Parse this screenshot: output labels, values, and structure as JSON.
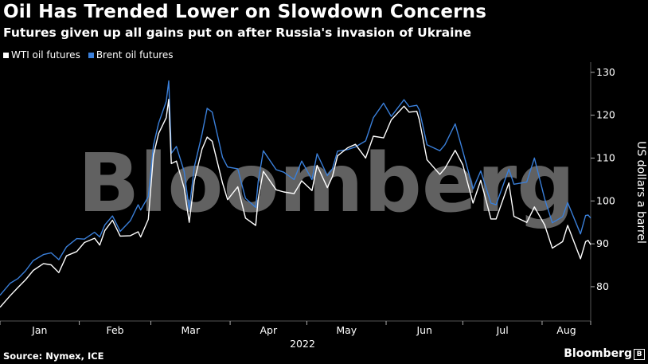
{
  "title": "Oil Has Trended Lower on Slowdown Concerns",
  "subtitle": "Futures given up all gains put on after Russia's invasion of Ukraine",
  "source": "Source: Nymex, ICE",
  "brand": "Bloomberg",
  "watermark": "Bloomberg",
  "colors": {
    "wti": "#ffffff",
    "brent": "#3a7fd9",
    "grid": "#555555",
    "text": "#ffffff"
  },
  "chart_data": {
    "type": "line",
    "title": "Oil Has Trended Lower on Slowdown Concerns",
    "subtitle": "Futures given up all gains put on after Russia's invasion of Ukraine",
    "xlabel": "2022",
    "ylabel": "US dollars a barrel",
    "ylim": [
      72,
      132
    ],
    "yticks": [
      80,
      90,
      100,
      110,
      120,
      130
    ],
    "grid": false,
    "legend_position": "top-left",
    "x_tick_labels": [
      "Jan",
      "Feb",
      "Mar",
      "Apr",
      "May",
      "Jun",
      "Jul",
      "Aug"
    ],
    "x_range": [
      "2022-01-01",
      "2022-08-20"
    ],
    "series": [
      {
        "name": "WTI oil futures",
        "color": "#ffffff",
        "points": [
          [
            "2022-01-01",
            75.2
          ],
          [
            "2022-01-05",
            77.9
          ],
          [
            "2022-01-08",
            79.8
          ],
          [
            "2022-01-11",
            81.6
          ],
          [
            "2022-01-14",
            83.8
          ],
          [
            "2022-01-18",
            85.4
          ],
          [
            "2022-01-21",
            85.1
          ],
          [
            "2022-01-24",
            83.3
          ],
          [
            "2022-01-27",
            87.2
          ],
          [
            "2022-01-31",
            88.2
          ],
          [
            "2022-02-03",
            90.3
          ],
          [
            "2022-02-07",
            91.3
          ],
          [
            "2022-02-09",
            89.7
          ],
          [
            "2022-02-11",
            93.1
          ],
          [
            "2022-02-14",
            95.5
          ],
          [
            "2022-02-17",
            91.8
          ],
          [
            "2022-02-21",
            91.9
          ],
          [
            "2022-02-24",
            92.8
          ],
          [
            "2022-02-25",
            91.6
          ],
          [
            "2022-02-28",
            95.7
          ],
          [
            "2022-03-02",
            110.6
          ],
          [
            "2022-03-04",
            115.7
          ],
          [
            "2022-03-07",
            119.4
          ],
          [
            "2022-03-08",
            123.7
          ],
          [
            "2022-03-09",
            108.7
          ],
          [
            "2022-03-11",
            109.3
          ],
          [
            "2022-03-14",
            103.0
          ],
          [
            "2022-03-16",
            95.0
          ],
          [
            "2022-03-18",
            104.7
          ],
          [
            "2022-03-21",
            112.1
          ],
          [
            "2022-03-23",
            114.9
          ],
          [
            "2022-03-25",
            113.9
          ],
          [
            "2022-03-29",
            104.2
          ],
          [
            "2022-03-31",
            100.3
          ],
          [
            "2022-04-04",
            103.3
          ],
          [
            "2022-04-07",
            96.0
          ],
          [
            "2022-04-11",
            94.3
          ],
          [
            "2022-04-12",
            100.6
          ],
          [
            "2022-04-14",
            106.9
          ],
          [
            "2022-04-19",
            102.6
          ],
          [
            "2022-04-22",
            102.1
          ],
          [
            "2022-04-26",
            101.7
          ],
          [
            "2022-04-29",
            104.7
          ],
          [
            "2022-05-03",
            102.4
          ],
          [
            "2022-05-05",
            108.3
          ],
          [
            "2022-05-09",
            103.1
          ],
          [
            "2022-05-11",
            105.7
          ],
          [
            "2022-05-13",
            110.5
          ],
          [
            "2022-05-17",
            112.4
          ],
          [
            "2022-05-20",
            113.2
          ],
          [
            "2022-05-24",
            110.0
          ],
          [
            "2022-05-27",
            115.1
          ],
          [
            "2022-05-31",
            114.7
          ],
          [
            "2022-06-03",
            118.9
          ],
          [
            "2022-06-08",
            122.1
          ],
          [
            "2022-06-10",
            120.7
          ],
          [
            "2022-06-13",
            120.9
          ],
          [
            "2022-06-14",
            118.9
          ],
          [
            "2022-06-17",
            109.6
          ],
          [
            "2022-06-22",
            106.2
          ],
          [
            "2022-06-24",
            107.6
          ],
          [
            "2022-06-28",
            111.8
          ],
          [
            "2022-07-01",
            108.4
          ],
          [
            "2022-07-05",
            99.5
          ],
          [
            "2022-07-08",
            104.8
          ],
          [
            "2022-07-12",
            95.8
          ],
          [
            "2022-07-14",
            95.8
          ],
          [
            "2022-07-19",
            104.2
          ],
          [
            "2022-07-21",
            96.4
          ],
          [
            "2022-07-26",
            94.98
          ],
          [
            "2022-07-29",
            98.6
          ],
          [
            "2022-08-02",
            94.4
          ],
          [
            "2022-08-05",
            89.0
          ],
          [
            "2022-08-09",
            90.5
          ],
          [
            "2022-08-11",
            94.3
          ],
          [
            "2022-08-16",
            86.5
          ],
          [
            "2022-08-18",
            90.5
          ],
          [
            "2022-08-19",
            90.8
          ],
          [
            "2022-08-20",
            89.8
          ]
        ]
      },
      {
        "name": "Brent oil futures",
        "color": "#3a7fd9",
        "points": [
          [
            "2022-01-01",
            78.0
          ],
          [
            "2022-01-05",
            80.8
          ],
          [
            "2022-01-08",
            81.9
          ],
          [
            "2022-01-11",
            83.7
          ],
          [
            "2022-01-14",
            86.1
          ],
          [
            "2022-01-18",
            87.5
          ],
          [
            "2022-01-21",
            87.9
          ],
          [
            "2022-01-24",
            86.3
          ],
          [
            "2022-01-27",
            89.3
          ],
          [
            "2022-01-31",
            91.2
          ],
          [
            "2022-02-03",
            91.1
          ],
          [
            "2022-02-07",
            92.7
          ],
          [
            "2022-02-09",
            91.6
          ],
          [
            "2022-02-11",
            94.4
          ],
          [
            "2022-02-14",
            96.5
          ],
          [
            "2022-02-17",
            92.9
          ],
          [
            "2022-02-21",
            95.4
          ],
          [
            "2022-02-24",
            99.1
          ],
          [
            "2022-02-25",
            97.9
          ],
          [
            "2022-02-28",
            100.99
          ],
          [
            "2022-03-02",
            112.9
          ],
          [
            "2022-03-04",
            118.1
          ],
          [
            "2022-03-07",
            123.2
          ],
          [
            "2022-03-08",
            127.98
          ],
          [
            "2022-03-09",
            111.1
          ],
          [
            "2022-03-11",
            112.7
          ],
          [
            "2022-03-14",
            106.9
          ],
          [
            "2022-03-16",
            98.0
          ],
          [
            "2022-03-18",
            107.9
          ],
          [
            "2022-03-21",
            115.6
          ],
          [
            "2022-03-23",
            121.6
          ],
          [
            "2022-03-25",
            120.7
          ],
          [
            "2022-03-29",
            110.2
          ],
          [
            "2022-03-31",
            107.9
          ],
          [
            "2022-04-04",
            107.5
          ],
          [
            "2022-04-07",
            100.6
          ],
          [
            "2022-04-11",
            98.5
          ],
          [
            "2022-04-12",
            104.6
          ],
          [
            "2022-04-14",
            111.7
          ],
          [
            "2022-04-19",
            107.3
          ],
          [
            "2022-04-22",
            106.7
          ],
          [
            "2022-04-26",
            104.99
          ],
          [
            "2022-04-29",
            109.3
          ],
          [
            "2022-05-03",
            104.97
          ],
          [
            "2022-05-05",
            111.0
          ],
          [
            "2022-05-09",
            105.9
          ],
          [
            "2022-05-11",
            107.5
          ],
          [
            "2022-05-13",
            111.6
          ],
          [
            "2022-05-17",
            112.0
          ],
          [
            "2022-05-20",
            112.6
          ],
          [
            "2022-05-24",
            114.0
          ],
          [
            "2022-05-27",
            119.4
          ],
          [
            "2022-05-31",
            122.8
          ],
          [
            "2022-06-03",
            119.7
          ],
          [
            "2022-06-08",
            123.6
          ],
          [
            "2022-06-10",
            122.0
          ],
          [
            "2022-06-13",
            122.3
          ],
          [
            "2022-06-14",
            121.2
          ],
          [
            "2022-06-17",
            113.1
          ],
          [
            "2022-06-22",
            111.7
          ],
          [
            "2022-06-24",
            113.1
          ],
          [
            "2022-06-28",
            117.98
          ],
          [
            "2022-07-01",
            111.6
          ],
          [
            "2022-07-05",
            102.8
          ],
          [
            "2022-07-08",
            107.0
          ],
          [
            "2022-07-12",
            99.5
          ],
          [
            "2022-07-14",
            99.1
          ],
          [
            "2022-07-19",
            107.4
          ],
          [
            "2022-07-21",
            103.9
          ],
          [
            "2022-07-26",
            104.4
          ],
          [
            "2022-07-29",
            110.0
          ],
          [
            "2022-08-02",
            100.5
          ],
          [
            "2022-08-05",
            94.9
          ],
          [
            "2022-08-09",
            96.3
          ],
          [
            "2022-08-11",
            99.6
          ],
          [
            "2022-08-16",
            92.3
          ],
          [
            "2022-08-18",
            96.6
          ],
          [
            "2022-08-19",
            96.7
          ],
          [
            "2022-08-20",
            96.0
          ]
        ]
      }
    ]
  }
}
